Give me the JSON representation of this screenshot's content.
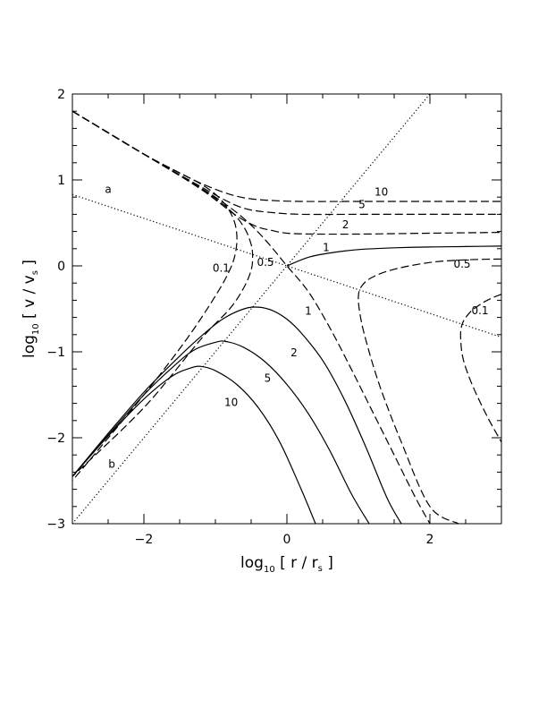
{
  "chart_data": {
    "type": "line",
    "xlabel": {
      "pre": "log",
      "sub": "10",
      "main": " [ r / r",
      "unit_sub": "s",
      "post": " ]"
    },
    "ylabel": {
      "pre": "log",
      "sub": "10",
      "main": " [ v / v",
      "unit_sub": "s",
      "post": " ]"
    },
    "xlim": [
      -3,
      3
    ],
    "ylim": [
      -3,
      2
    ],
    "xticks": [
      -2,
      0,
      2
    ],
    "yticks": [
      -3,
      -2,
      -1,
      0,
      1,
      2
    ],
    "xtick_labels": [
      "−2",
      "0",
      "2"
    ],
    "ytick_labels": [
      "−3",
      "−2",
      "−1",
      "0",
      "1",
      "2"
    ],
    "grid": false,
    "reference_lines": [
      {
        "name": "a",
        "style": "dotted",
        "x": [
          -3,
          3
        ],
        "y": [
          0.83,
          -0.83
        ],
        "label_x": -2.5,
        "label_y": 0.85
      },
      {
        "name": "b",
        "style": "dotted",
        "x": [
          -3,
          2
        ],
        "y": [
          -3,
          2
        ],
        "label_x": -2.45,
        "label_y": -2.35
      }
    ],
    "series": [
      {
        "name": "10",
        "style": "dashed",
        "x": [
          -3,
          -2.5,
          -2,
          -1.5,
          -1.2,
          -0.9,
          -0.7,
          -0.5,
          -0.2,
          0.2,
          1,
          2,
          3
        ],
        "y": [
          1.8,
          1.55,
          1.3,
          1.08,
          0.96,
          0.86,
          0.81,
          0.78,
          0.76,
          0.75,
          0.75,
          0.75,
          0.75
        ],
        "label_x": 1.32,
        "label_y": 0.82
      },
      {
        "name": "5",
        "style": "dashed",
        "x": [
          -3,
          -2.5,
          -2,
          -1.5,
          -1.2,
          -0.9,
          -0.7,
          -0.5,
          -0.2,
          0.2,
          1,
          2,
          3
        ],
        "y": [
          1.8,
          1.55,
          1.3,
          1.06,
          0.92,
          0.78,
          0.7,
          0.65,
          0.62,
          0.6,
          0.6,
          0.6,
          0.6
        ],
        "label_x": 1.05,
        "label_y": 0.67
      },
      {
        "name": "2",
        "style": "dashed",
        "x": [
          -3,
          -2.5,
          -2,
          -1.5,
          -1.2,
          -1.0,
          -0.8,
          -0.6,
          -0.4,
          -0.2,
          0,
          0.4,
          1,
          2,
          3
        ],
        "y": [
          1.8,
          1.55,
          1.3,
          1.05,
          0.89,
          0.77,
          0.64,
          0.53,
          0.45,
          0.41,
          0.38,
          0.37,
          0.37,
          0.38,
          0.39
        ],
        "label_x": 0.82,
        "label_y": 0.44
      },
      {
        "name": "1",
        "style": "solid",
        "x": [
          0,
          0.3,
          0.6,
          1,
          1.5,
          2,
          2.5,
          3
        ],
        "y": [
          0,
          0.1,
          0.15,
          0.19,
          0.21,
          0.22,
          0.225,
          0.23
        ],
        "label_x": 0.55,
        "label_y": 0.17
      },
      {
        "name": "1",
        "style": "dashed",
        "x": [
          -3,
          -2,
          -1.5,
          -1,
          -0.6,
          -0.3,
          0,
          0.3,
          0.6,
          0.9,
          1.2,
          1.5,
          1.8,
          2.0
        ],
        "y": [
          1.8,
          1.3,
          1.05,
          0.8,
          0.55,
          0.3,
          0,
          -0.3,
          -0.72,
          -1.2,
          -1.7,
          -2.2,
          -2.7,
          -3.0
        ],
        "label_x": 0.3,
        "label_y": -0.57
      },
      {
        "name": "0.5",
        "style": "dashed",
        "x": [
          -3,
          -2,
          -1.2,
          -0.8,
          -0.6,
          -0.5,
          -0.48,
          -0.5,
          -0.6,
          -0.8,
          -1.2,
          -2,
          -3
        ],
        "y": [
          1.8,
          1.3,
          0.9,
          0.65,
          0.45,
          0.25,
          0.1,
          -0.05,
          -0.25,
          -0.5,
          -0.85,
          -1.65,
          -2.45
        ],
        "label_x": -0.3,
        "label_y": 0.0
      },
      {
        "name": "0.1",
        "style": "dashed",
        "x": [
          -3,
          -2,
          -1.2,
          -0.9,
          -0.75,
          -0.7,
          -0.72,
          -0.8,
          -1.0,
          -1.4,
          -2,
          -3
        ],
        "y": [
          1.8,
          1.3,
          0.95,
          0.75,
          0.55,
          0.35,
          0.15,
          -0.05,
          -0.35,
          -0.85,
          -1.5,
          -2.5
        ],
        "label_x": -0.92,
        "label_y": -0.07
      },
      {
        "name": "0.5",
        "style": "dashed",
        "x": [
          3,
          2.5,
          2,
          1.5,
          1.2,
          1.05,
          1.0,
          1.02,
          1.1,
          1.3,
          1.6,
          2.0,
          2.4
        ],
        "y": [
          0.08,
          0.07,
          0.04,
          -0.04,
          -0.13,
          -0.23,
          -0.35,
          -0.55,
          -0.85,
          -1.4,
          -2.05,
          -2.8,
          -3.0
        ],
        "label_x": 2.45,
        "label_y": -0.02
      },
      {
        "name": "0.1",
        "style": "dashed",
        "x": [
          3,
          2.85,
          2.7,
          2.55,
          2.45,
          2.43,
          2.47,
          2.6,
          2.8,
          3.0
        ],
        "y": [
          -0.33,
          -0.38,
          -0.45,
          -0.55,
          -0.68,
          -0.85,
          -1.1,
          -1.4,
          -1.75,
          -2.05
        ],
        "label_x": 2.7,
        "label_y": -0.56
      },
      {
        "name": "2",
        "style": "solid",
        "x": [
          -3,
          -2.5,
          -2,
          -1.5,
          -1.2,
          -0.9,
          -0.6,
          -0.4,
          -0.2,
          0,
          0.2,
          0.5,
          0.8,
          1.1,
          1.4,
          1.6
        ],
        "y": [
          -2.45,
          -1.95,
          -1.47,
          -1.05,
          -0.82,
          -0.62,
          -0.5,
          -0.48,
          -0.52,
          -0.62,
          -0.78,
          -1.1,
          -1.55,
          -2.1,
          -2.7,
          -3.0
        ],
        "label_x": 0.1,
        "label_y": -1.05
      },
      {
        "name": "5",
        "style": "solid",
        "x": [
          -3,
          -2.5,
          -2,
          -1.6,
          -1.3,
          -1.0,
          -0.85,
          -0.6,
          -0.3,
          0,
          0.3,
          0.6,
          0.9,
          1.15
        ],
        "y": [
          -2.45,
          -1.97,
          -1.5,
          -1.18,
          -0.98,
          -0.89,
          -0.88,
          -0.95,
          -1.12,
          -1.38,
          -1.72,
          -2.15,
          -2.65,
          -3.0
        ],
        "label_x": -0.27,
        "label_y": -1.35
      },
      {
        "name": "10",
        "style": "solid",
        "x": [
          -3,
          -2.5,
          -2,
          -1.6,
          -1.35,
          -1.2,
          -1.0,
          -0.7,
          -0.4,
          -0.1,
          0.2,
          0.4
        ],
        "y": [
          -2.45,
          -1.98,
          -1.55,
          -1.28,
          -1.19,
          -1.17,
          -1.22,
          -1.38,
          -1.65,
          -2.05,
          -2.6,
          -3.0
        ],
        "label_x": -0.78,
        "label_y": -1.63
      }
    ]
  }
}
